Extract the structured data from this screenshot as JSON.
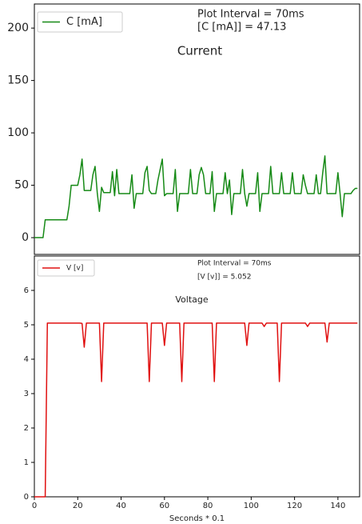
{
  "chart_data": [
    {
      "type": "line",
      "title": "Current",
      "annotations": [
        "Plot Interval = 70ms",
        "[C [mA]] = 47.13"
      ],
      "legend": "upper left",
      "xlim": [
        0,
        150
      ],
      "ylim": [
        -16,
        223
      ],
      "yticks": [
        0,
        50,
        100,
        150,
        200
      ],
      "x": [
        0,
        1,
        2,
        3,
        4,
        5,
        6,
        7,
        8,
        9,
        10,
        11,
        12,
        13,
        14,
        15,
        16,
        17,
        18,
        19,
        20,
        21,
        22,
        23,
        24,
        25,
        26,
        27,
        28,
        29,
        30,
        31,
        32,
        33,
        34,
        35,
        36,
        37,
        38,
        39,
        40,
        41,
        42,
        43,
        44,
        45,
        46,
        47,
        48,
        49,
        50,
        51,
        52,
        53,
        54,
        55,
        56,
        57,
        58,
        59,
        60,
        61,
        62,
        63,
        64,
        65,
        66,
        67,
        68,
        69,
        70,
        71,
        72,
        73,
        74,
        75,
        76,
        77,
        78,
        79,
        80,
        81,
        82,
        83,
        84,
        85,
        86,
        87,
        88,
        89,
        90,
        91,
        92,
        93,
        94,
        95,
        96,
        97,
        98,
        99,
        100,
        101,
        102,
        103,
        104,
        105,
        106,
        107,
        108,
        109,
        110,
        111,
        112,
        113,
        114,
        115,
        116,
        117,
        118,
        119,
        120,
        121,
        122,
        123,
        124,
        125,
        126,
        127,
        128,
        129,
        130,
        131,
        132,
        133,
        134,
        135,
        136,
        137,
        138,
        139,
        140,
        141,
        142,
        143,
        144,
        145,
        146,
        147,
        148,
        149
      ],
      "series": [
        {
          "name": "C [mA]",
          "color": "#168a16",
          "values": [
            0,
            0,
            0,
            0,
            0,
            17,
            17,
            17,
            17,
            17,
            17,
            17,
            17,
            17,
            17,
            17,
            30,
            50,
            50,
            50,
            50,
            60,
            75,
            45,
            45,
            45,
            45,
            60,
            68,
            43,
            25,
            48,
            43,
            43,
            43,
            43,
            63,
            40,
            65,
            42,
            42,
            42,
            42,
            42,
            42,
            60,
            28,
            42,
            42,
            42,
            42,
            62,
            68,
            45,
            42,
            42,
            42,
            55,
            65,
            75,
            40,
            42,
            42,
            42,
            42,
            65,
            25,
            42,
            42,
            42,
            42,
            42,
            65,
            42,
            42,
            42,
            60,
            67,
            60,
            42,
            42,
            42,
            63,
            25,
            42,
            42,
            42,
            42,
            62,
            42,
            55,
            22,
            42,
            42,
            42,
            42,
            65,
            42,
            30,
            42,
            42,
            42,
            42,
            62,
            25,
            42,
            42,
            42,
            42,
            68,
            42,
            42,
            42,
            42,
            62,
            42,
            42,
            42,
            42,
            62,
            42,
            42,
            42,
            42,
            60,
            50,
            42,
            42,
            42,
            42,
            60,
            42,
            42,
            62,
            78,
            42,
            42,
            42,
            42,
            42,
            62,
            42,
            20,
            42,
            42,
            42,
            42,
            45,
            47,
            47
          ]
        }
      ]
    },
    {
      "type": "line",
      "title": "Voltage",
      "annotations": [
        "Plot Interval = 70ms",
        "[V [v]] = 5.052"
      ],
      "legend": "upper left",
      "x_label": "Seconds * 0.1",
      "xlim": [
        0,
        150
      ],
      "xticks": [
        0,
        20,
        40,
        60,
        80,
        100,
        120,
        140
      ],
      "ylim": [
        0,
        7
      ],
      "yticks": [
        0,
        1,
        2,
        3,
        4,
        5,
        6
      ],
      "x": [
        0,
        1,
        2,
        3,
        4,
        5,
        6,
        7,
        8,
        9,
        10,
        11,
        12,
        13,
        14,
        15,
        16,
        17,
        18,
        19,
        20,
        21,
        22,
        23,
        24,
        25,
        26,
        27,
        28,
        29,
        30,
        31,
        32,
        33,
        34,
        35,
        36,
        37,
        38,
        39,
        40,
        41,
        42,
        43,
        44,
        45,
        46,
        47,
        48,
        49,
        50,
        51,
        52,
        53,
        54,
        55,
        56,
        57,
        58,
        59,
        60,
        61,
        62,
        63,
        64,
        65,
        66,
        67,
        68,
        69,
        70,
        71,
        72,
        73,
        74,
        75,
        76,
        77,
        78,
        79,
        80,
        81,
        82,
        83,
        84,
        85,
        86,
        87,
        88,
        89,
        90,
        91,
        92,
        93,
        94,
        95,
        96,
        97,
        98,
        99,
        100,
        101,
        102,
        103,
        104,
        105,
        106,
        107,
        108,
        109,
        110,
        111,
        112,
        113,
        114,
        115,
        116,
        117,
        118,
        119,
        120,
        121,
        122,
        123,
        124,
        125,
        126,
        127,
        128,
        129,
        130,
        131,
        132,
        133,
        134,
        135,
        136,
        137,
        138,
        139,
        140,
        141,
        142,
        143,
        144,
        145,
        146,
        147,
        148,
        149
      ],
      "series": [
        {
          "name": "V [v]",
          "color": "#e01010",
          "values": [
            0,
            0,
            0,
            0,
            0,
            0,
            5.05,
            5.05,
            5.05,
            5.05,
            5.05,
            5.05,
            5.05,
            5.05,
            5.05,
            5.05,
            5.05,
            5.05,
            5.05,
            5.05,
            5.05,
            5.05,
            5.04,
            4.35,
            5.05,
            5.05,
            5.05,
            5.05,
            5.05,
            5.05,
            5.05,
            3.35,
            5.05,
            5.05,
            5.05,
            5.05,
            5.05,
            5.05,
            5.05,
            5.05,
            5.05,
            5.05,
            5.05,
            5.05,
            5.05,
            5.05,
            5.05,
            5.05,
            5.05,
            5.05,
            5.05,
            5.05,
            5.05,
            3.35,
            5.05,
            5.05,
            5.05,
            5.05,
            5.05,
            5.05,
            4.4,
            5.05,
            5.05,
            5.05,
            5.05,
            5.05,
            5.05,
            5.05,
            3.35,
            5.05,
            5.05,
            5.05,
            5.05,
            5.05,
            5.05,
            5.05,
            5.05,
            5.05,
            5.05,
            5.05,
            5.05,
            5.05,
            5.05,
            3.35,
            5.05,
            5.05,
            5.05,
            5.05,
            5.05,
            5.05,
            5.05,
            5.05,
            5.05,
            5.05,
            5.05,
            5.05,
            5.05,
            5.05,
            4.4,
            5.05,
            5.05,
            5.05,
            5.05,
            5.05,
            5.05,
            5.05,
            4.95,
            5.05,
            5.05,
            5.05,
            5.05,
            5.05,
            5.05,
            3.35,
            5.05,
            5.05,
            5.05,
            5.05,
            5.05,
            5.05,
            5.05,
            5.05,
            5.05,
            5.05,
            5.05,
            5.05,
            4.95,
            5.05,
            5.05,
            5.05,
            5.05,
            5.05,
            5.05,
            5.05,
            5.05,
            4.5,
            5.05,
            5.05,
            5.05,
            5.05,
            5.05,
            5.05,
            5.05,
            5.05,
            5.05,
            5.05,
            5.05,
            5.05,
            5.05,
            5.05
          ]
        }
      ]
    }
  ]
}
